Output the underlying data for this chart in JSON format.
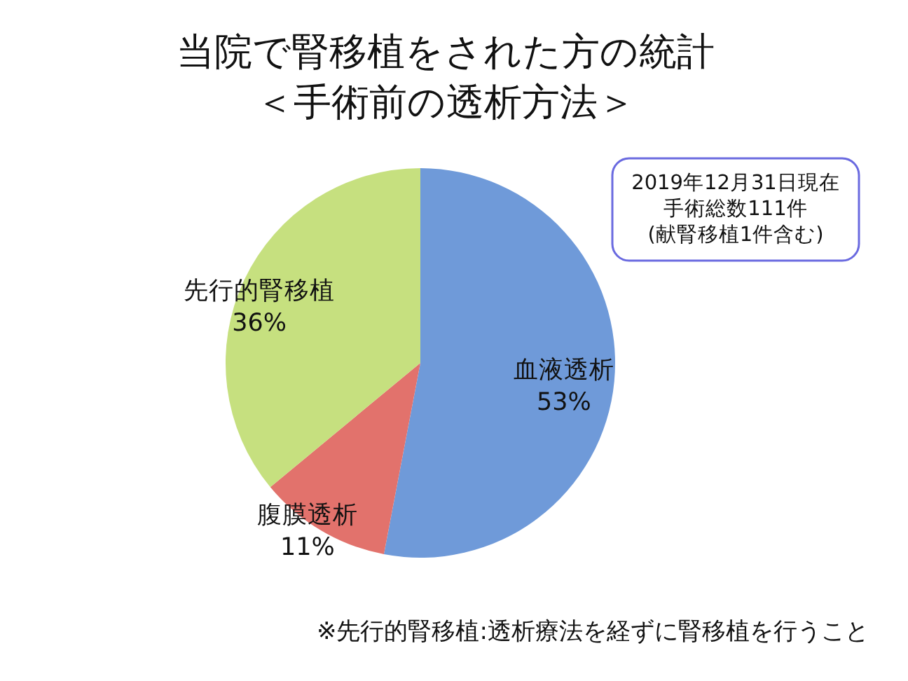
{
  "chart_data": {
    "type": "pie",
    "title": "当院で腎移植をされた方の統計",
    "subtitle": "＜手術前の透析方法＞",
    "categories": [
      "血液透析",
      "腹膜透析",
      "先行的腎移植"
    ],
    "values": [
      53,
      11,
      36
    ],
    "colors": [
      "#6f9ad9",
      "#e2726c",
      "#c6e07f"
    ],
    "value_labels": [
      "53%",
      "11%",
      "36%"
    ],
    "annotations": [
      "2019年12月31日現在",
      "手術総数111件",
      "(献腎移植1件含む)",
      "※先行的腎移植:透析療法を経ずに腎移植を行うこと"
    ]
  }
}
